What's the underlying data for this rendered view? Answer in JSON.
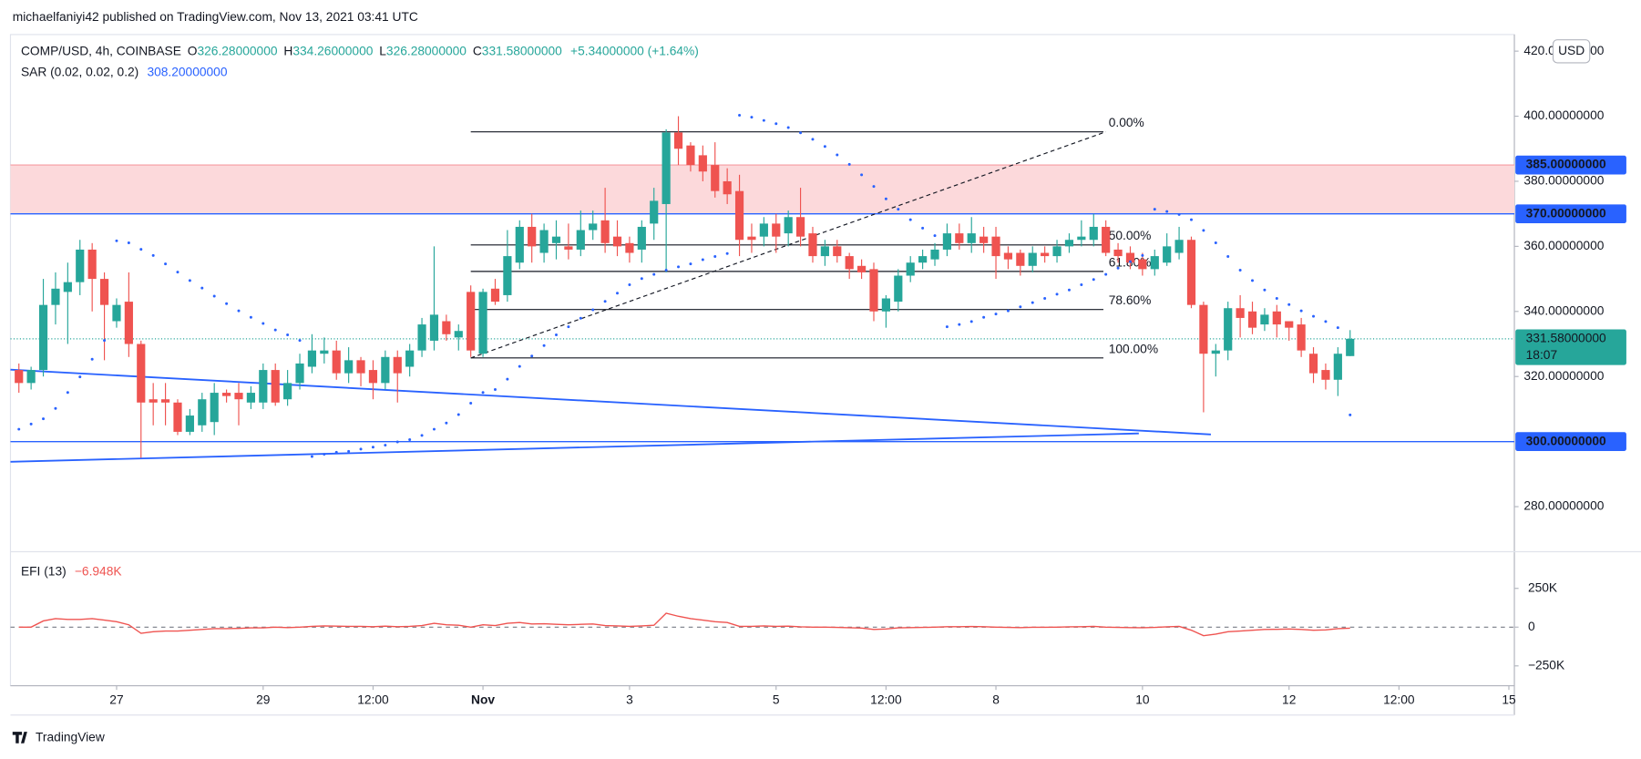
{
  "header": {
    "published": "michaelfaniyi42 published on TradingView.com, Nov 13, 2021 03:41 UTC",
    "logo": "TradingView"
  },
  "chart_data": [
    {
      "type": "candlestick",
      "symbol": "COMP/USD, 4h, COINBASE",
      "ohlc": [
        {
          "key": "O",
          "value": "326.28000000"
        },
        {
          "key": "H",
          "value": "334.26000000"
        },
        {
          "key": "L",
          "value": "326.28000000"
        },
        {
          "key": "C",
          "value": "331.58000000"
        }
      ],
      "change": "+5.34000000 (+1.64%)",
      "currency": "USD",
      "up_color": "#26a69a",
      "down_color": "#ef5350",
      "candles": [
        [
          322,
          324,
          315,
          318
        ],
        [
          318,
          323,
          316,
          322
        ],
        [
          322,
          350,
          320,
          342
        ],
        [
          342,
          352,
          336,
          347
        ],
        [
          346,
          355,
          330,
          349
        ],
        [
          349,
          362,
          345,
          359
        ],
        [
          359,
          361,
          340,
          350
        ],
        [
          350,
          352,
          325,
          342
        ],
        [
          337,
          344,
          335,
          342
        ],
        [
          343,
          352,
          326,
          330
        ],
        [
          330,
          331,
          295,
          312
        ],
        [
          313,
          318,
          305,
          312
        ],
        [
          313,
          318,
          305,
          312
        ],
        [
          312,
          313,
          302,
          303
        ],
        [
          303,
          310,
          302,
          308
        ],
        [
          305,
          315,
          303,
          313
        ],
        [
          306,
          318,
          302,
          315
        ],
        [
          315,
          316,
          312,
          314
        ],
        [
          315,
          318,
          305,
          313
        ],
        [
          312,
          317,
          310,
          315
        ],
        [
          312,
          324,
          310,
          322
        ],
        [
          322,
          324,
          311,
          312
        ],
        [
          313,
          322,
          311,
          318
        ],
        [
          318,
          327,
          316,
          324
        ],
        [
          323,
          333,
          321,
          328
        ],
        [
          327,
          332,
          324,
          328
        ],
        [
          328,
          331,
          319,
          321
        ],
        [
          321,
          329,
          318,
          325
        ],
        [
          325,
          326,
          317,
          321
        ],
        [
          322,
          325,
          313,
          318
        ],
        [
          318,
          328,
          316,
          326
        ],
        [
          326,
          328,
          312,
          321
        ],
        [
          323,
          330,
          320,
          328
        ],
        [
          328,
          338,
          326,
          336
        ],
        [
          331,
          360,
          328,
          339
        ],
        [
          337,
          339,
          331,
          333
        ],
        [
          332,
          336,
          328,
          334
        ],
        [
          346,
          348,
          326,
          328
        ],
        [
          327,
          347,
          326,
          346
        ],
        [
          347,
          350,
          342,
          343
        ],
        [
          345,
          365,
          343,
          357
        ],
        [
          355,
          368,
          353,
          366
        ],
        [
          366,
          370,
          355,
          360
        ],
        [
          358,
          367,
          355,
          365
        ],
        [
          361,
          368,
          356,
          363
        ],
        [
          360,
          367,
          356,
          359
        ],
        [
          359,
          371,
          357,
          365
        ],
        [
          365,
          371,
          362,
          367
        ],
        [
          368,
          378,
          358,
          361
        ],
        [
          363,
          368,
          357,
          360
        ],
        [
          361,
          363,
          355,
          358
        ],
        [
          359,
          368,
          355,
          366
        ],
        [
          367,
          378,
          362,
          374
        ],
        [
          373,
          396,
          352,
          395
        ],
        [
          395,
          400,
          385,
          390
        ],
        [
          391,
          392,
          383,
          385
        ],
        [
          388,
          391,
          380,
          383
        ],
        [
          385,
          392,
          375,
          377
        ],
        [
          380,
          384,
          373,
          376
        ],
        [
          377,
          382,
          357,
          362
        ],
        [
          363,
          367,
          358,
          362
        ],
        [
          363,
          369,
          360,
          367
        ],
        [
          367,
          370,
          358,
          363
        ],
        [
          364,
          371,
          360,
          369
        ],
        [
          369,
          378,
          360,
          363
        ],
        [
          364,
          366,
          355,
          357
        ],
        [
          357,
          362,
          354,
          360
        ],
        [
          360,
          362,
          355,
          357
        ],
        [
          357,
          358,
          350,
          353
        ],
        [
          354,
          356,
          350,
          352
        ],
        [
          353,
          355,
          337,
          340
        ],
        [
          340,
          345,
          335,
          344
        ],
        [
          343,
          353,
          340,
          351
        ],
        [
          351,
          357,
          349,
          355
        ],
        [
          355,
          359,
          353,
          357
        ],
        [
          356,
          361,
          354,
          359
        ],
        [
          359,
          367,
          357,
          364
        ],
        [
          364,
          367,
          359,
          361
        ],
        [
          361,
          369,
          358,
          364
        ],
        [
          363,
          366,
          358,
          361
        ],
        [
          363,
          366,
          350,
          357
        ],
        [
          358,
          360,
          353,
          356
        ],
        [
          358,
          359,
          351,
          354
        ],
        [
          354,
          360,
          352,
          358
        ],
        [
          358,
          360,
          355,
          357
        ],
        [
          357,
          362,
          355,
          360
        ],
        [
          360,
          364,
          358,
          362
        ],
        [
          362,
          368,
          360,
          363
        ],
        [
          362,
          370,
          360,
          366
        ],
        [
          366,
          368,
          357,
          358
        ],
        [
          359,
          361,
          355,
          357
        ],
        [
          358,
          360,
          353,
          355
        ],
        [
          356,
          358,
          351,
          353
        ],
        [
          353,
          359,
          351,
          357
        ],
        [
          355,
          364,
          354,
          360
        ],
        [
          358,
          366,
          356,
          362
        ],
        [
          362,
          363,
          341,
          342
        ],
        [
          342,
          343,
          309,
          327
        ],
        [
          327,
          330,
          320,
          328
        ],
        [
          328,
          343,
          325,
          341
        ],
        [
          341,
          345,
          332,
          338
        ],
        [
          340,
          343,
          333,
          335
        ],
        [
          336,
          341,
          334,
          339
        ],
        [
          340,
          342,
          332,
          336
        ],
        [
          337,
          337,
          331,
          335
        ],
        [
          336,
          338,
          326,
          328
        ],
        [
          327,
          329,
          318,
          321
        ],
        [
          322,
          324,
          316,
          319
        ],
        [
          319,
          329,
          314,
          327
        ],
        [
          326.28,
          334.26,
          326.28,
          331.58
        ]
      ],
      "sar": {
        "name": "SAR (0.02, 0.02, 0.2)",
        "value_label": "308.20000000",
        "color": "#2962ff",
        "values": [
          303.8,
          305.4,
          307.0,
          310.2,
          315.1,
          319.9,
          325.3,
          331.1,
          361.7,
          361.1,
          359.1,
          357.2,
          354.6,
          352.1,
          349.5,
          347.2,
          344.7,
          342.4,
          340.2,
          338.2,
          336.3,
          334.3,
          332.8,
          331.1,
          295.4,
          296.1,
          296.7,
          297.0,
          297.7,
          298.3,
          298.9,
          299.9,
          300.6,
          301.9,
          303.8,
          305.7,
          308.3,
          311.8,
          315.1,
          316.0,
          319.2,
          323.1,
          326.3,
          329.5,
          332.8,
          335.3,
          337.9,
          340.5,
          343.1,
          345.6,
          348.2,
          350.1,
          351.4,
          352.7,
          353.7,
          354.6,
          355.9,
          356.9,
          357.8,
          400.3,
          399.7,
          398.7,
          397.7,
          396.5,
          394.9,
          392.9,
          390.7,
          388.1,
          385.2,
          382.0,
          378.4,
          374.6,
          371.4,
          368.2,
          365.6,
          363.3,
          335.3,
          336.0,
          336.9,
          338.2,
          339.2,
          340.2,
          341.4,
          342.7,
          344.0,
          345.3,
          346.6,
          348.2,
          349.8,
          351.4,
          353.3,
          355.3,
          357.2,
          371.4,
          370.7,
          369.8,
          368.2,
          364.9,
          361.1,
          356.9,
          352.7,
          349.5,
          346.6,
          344.0,
          342.1,
          340.2,
          338.5,
          336.9,
          335.0,
          308.2
        ]
      },
      "ylim": [
        266.15,
        425.1
      ],
      "yticks": [
        {
          "value": 280,
          "label": "280.00000000"
        },
        {
          "value": 320,
          "label": "320.00000000"
        },
        {
          "value": 340,
          "label": "340.00000000"
        },
        {
          "value": 360,
          "label": "360.00000000"
        },
        {
          "value": 380,
          "label": "380.00000000"
        },
        {
          "value": 400,
          "label": "400.00000000"
        },
        {
          "value": 420,
          "label": "420.00000000"
        }
      ],
      "xlim": [
        -0.69,
        122.45
      ],
      "xticks": [
        {
          "value": 8,
          "label": "27"
        },
        {
          "value": 20,
          "label": "29"
        },
        {
          "value": 29,
          "label": "12:00"
        },
        {
          "value": 38,
          "label": "Nov"
        },
        {
          "value": 50,
          "label": "3"
        },
        {
          "value": 62,
          "label": "5"
        },
        {
          "value": 71,
          "label": "12:00"
        },
        {
          "value": 80,
          "label": "8"
        },
        {
          "value": 92,
          "label": "10"
        },
        {
          "value": 104,
          "label": "12"
        },
        {
          "value": 113,
          "label": "12:00"
        },
        {
          "value": 122,
          "label": "15"
        }
      ],
      "zone": {
        "low": 370,
        "high": 385,
        "color": "#fcd9db",
        "edge_color": "#f59ba1"
      },
      "levels": [
        {
          "value": 385,
          "label": "385.00000000"
        },
        {
          "value": 370,
          "label": "370.00000000"
        },
        {
          "value": 300,
          "label": "300.00000000"
        }
      ],
      "level_color": "#2962ff",
      "last": {
        "value": 331.58,
        "label": "331.58000000",
        "countdown": "18:07"
      },
      "fib": {
        "x0": 37,
        "x1": 88.8,
        "levels": [
          {
            "label": "0.00%",
            "value": 395.2
          },
          {
            "label": "50.00%",
            "value": 360.45
          },
          {
            "label": "61.80%",
            "value": 352.3
          },
          {
            "label": "78.60%",
            "value": 340.6
          },
          {
            "label": "100.00%",
            "value": 325.7
          }
        ]
      },
      "fib_trend": {
        "x": [
          37,
          89
        ],
        "y": [
          325.7,
          395.2
        ]
      },
      "trendlines": [
        {
          "x": [
            -0.69,
            97.6
          ],
          "y": [
            322.1,
            302.2
          ]
        },
        {
          "x": [
            -0.69,
            91.7
          ],
          "y": [
            293.8,
            302.5
          ]
        }
      ]
    },
    {
      "type": "line",
      "name": "EFI (13)",
      "value_label": "−6.948K",
      "color": "#ef5350",
      "values": [
        0,
        0,
        40000,
        55000,
        50000,
        50000,
        55000,
        45000,
        35000,
        15000,
        -40000,
        -30000,
        -25000,
        -25000,
        -20000,
        -15000,
        -10000,
        -10000,
        -8000,
        -5000,
        -5000,
        0,
        -3000,
        0,
        5000,
        8000,
        6000,
        5000,
        5000,
        3000,
        6000,
        3000,
        5000,
        10000,
        25000,
        15000,
        12000,
        0,
        15000,
        10000,
        25000,
        30000,
        20000,
        22000,
        18000,
        15000,
        18000,
        20000,
        10000,
        8000,
        5000,
        8000,
        12000,
        90000,
        70000,
        55000,
        45000,
        35000,
        30000,
        5000,
        5000,
        8000,
        5000,
        6000,
        2000,
        0,
        0,
        -2000,
        -4000,
        -6000,
        -15000,
        -12000,
        -5000,
        -3000,
        -2000,
        0,
        3000,
        3000,
        4000,
        3000,
        0,
        -2000,
        -3000,
        -1000,
        -1000,
        0,
        2000,
        3000,
        5000,
        0,
        -2000,
        -3000,
        -4000,
        -2000,
        2000,
        5000,
        -20000,
        -55000,
        -45000,
        -30000,
        -25000,
        -20000,
        -15000,
        -14000,
        -12000,
        -15000,
        -20000,
        -18000,
        -10000,
        -6948
      ],
      "ylim": [
        -378000,
        486500
      ],
      "yticks": [
        {
          "value": 250000,
          "label": "250K"
        },
        0,
        {
          "value": -250000,
          "label": "−250K"
        }
      ]
    }
  ]
}
